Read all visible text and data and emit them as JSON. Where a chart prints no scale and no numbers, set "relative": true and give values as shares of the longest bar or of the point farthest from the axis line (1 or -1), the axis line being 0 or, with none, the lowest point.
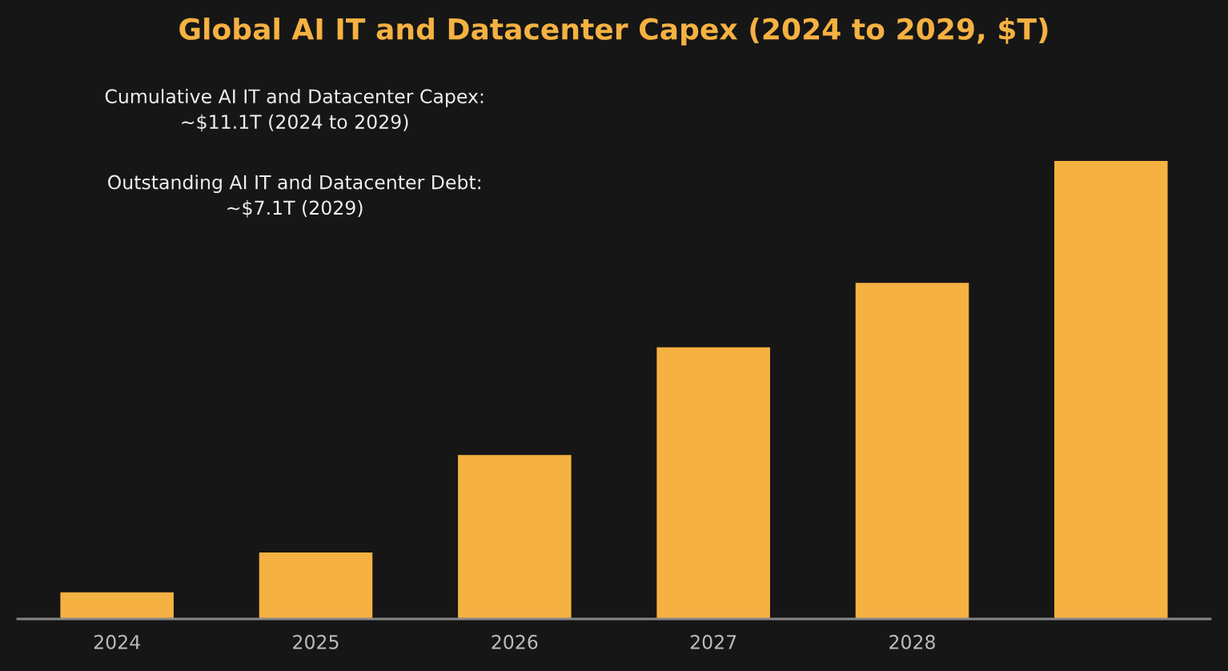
{
  "chart_data": {
    "type": "bar",
    "title": "Global AI IT and Datacenter Capex (2024 to 2029, $T)",
    "categories": [
      "2024",
      "2025",
      "2026",
      "2027",
      "2028",
      null
    ],
    "values": [
      0.058,
      0.145,
      0.358,
      0.593,
      0.734,
      1
    ],
    "relative": true,
    "color": "#f5b142",
    "grid": false,
    "legend": false,
    "annotations": [
      "Cumulative AI IT and Datacenter Capex:\n~$11.1T (2024 to 2029)",
      "Outstanding AI IT and Datacenter Debt:\n~$7.1T (2029)"
    ]
  }
}
